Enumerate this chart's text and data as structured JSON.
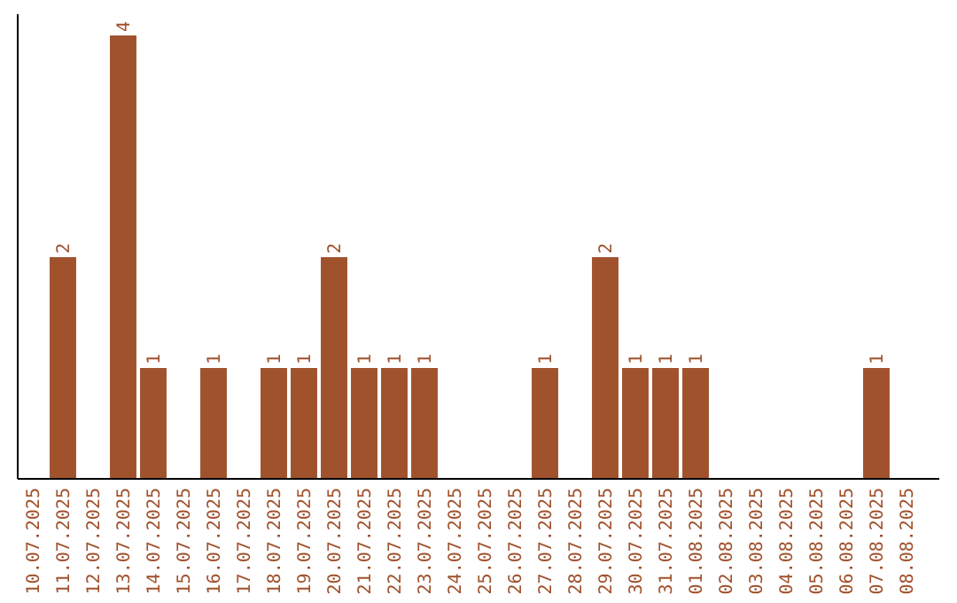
{
  "chart_data": {
    "type": "bar",
    "categories": [
      "10.07.2025",
      "11.07.2025",
      "12.07.2025",
      "13.07.2025",
      "14.07.2025",
      "15.07.2025",
      "16.07.2025",
      "17.07.2025",
      "18.07.2025",
      "19.07.2025",
      "20.07.2025",
      "21.07.2025",
      "22.07.2025",
      "23.07.2025",
      "24.07.2025",
      "25.07.2025",
      "26.07.2025",
      "27.07.2025",
      "28.07.2025",
      "29.07.2025",
      "30.07.2025",
      "31.07.2025",
      "01.08.2025",
      "02.08.2025",
      "03.08.2025",
      "04.08.2025",
      "05.08.2025",
      "06.08.2025",
      "07.08.2025",
      "08.08.2025"
    ],
    "values": [
      0,
      2,
      0,
      4,
      1,
      0,
      1,
      0,
      1,
      1,
      2,
      1,
      1,
      1,
      0,
      0,
      0,
      1,
      0,
      2,
      1,
      1,
      1,
      0,
      0,
      0,
      0,
      0,
      1,
      0
    ],
    "value_labels": [
      null,
      "2",
      null,
      "4",
      "1",
      null,
      "1",
      null,
      "1",
      "1",
      "2",
      "1",
      "1",
      "1",
      null,
      null,
      null,
      "1",
      null,
      "2",
      "1",
      "1",
      "1",
      null,
      null,
      null,
      null,
      null,
      "1",
      null
    ],
    "color": "#a0522d"
  }
}
